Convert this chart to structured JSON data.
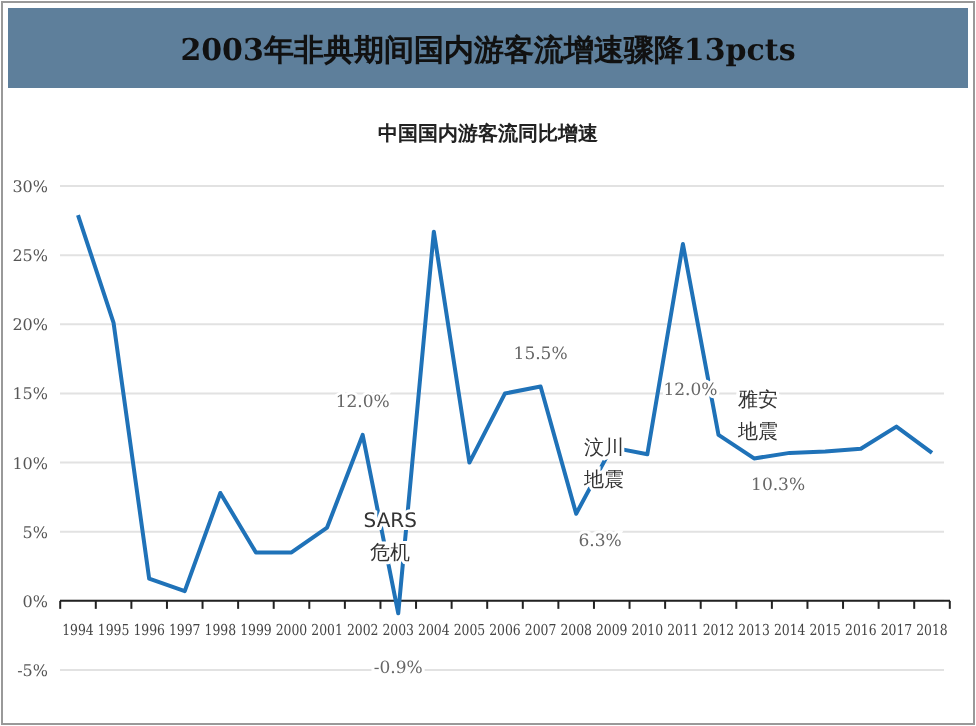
{
  "chart_data": {
    "type": "line",
    "title": "2003年非典期间国内游客流增速骤降13pcts",
    "subtitle": "中国国内游客流同比增速",
    "categories": [
      "1994",
      "1995",
      "1996",
      "1997",
      "1998",
      "1999",
      "2000",
      "2001",
      "2002",
      "2003",
      "2004",
      "2005",
      "2006",
      "2007",
      "2008",
      "2009",
      "2010",
      "2011",
      "2012",
      "2013",
      "2014",
      "2015",
      "2016",
      "2017",
      "2018"
    ],
    "values": [
      27.9,
      20.1,
      1.6,
      0.7,
      7.8,
      3.5,
      3.5,
      5.3,
      12.0,
      -0.9,
      26.7,
      10.0,
      15.0,
      15.5,
      6.3,
      11.1,
      10.6,
      25.8,
      12.0,
      10.3,
      10.7,
      10.8,
      11.0,
      12.6,
      10.7
    ],
    "color": "#1f72b8",
    "ylim": [
      -5,
      30
    ],
    "yticks": [
      {
        "value": -5,
        "label": "-5%"
      },
      {
        "value": 0,
        "label": "0%"
      },
      {
        "value": 5,
        "label": "5%"
      },
      {
        "value": 10,
        "label": "10%"
      },
      {
        "value": 15,
        "label": "15%"
      },
      {
        "value": 20,
        "label": "20%"
      },
      {
        "value": 25,
        "label": "25%"
      },
      {
        "value": 30,
        "label": "30%"
      }
    ],
    "grid": "y",
    "annotations": [
      {
        "text": "12.0%",
        "x": "2002",
        "y": 12.0
      },
      {
        "text": "SARS危机",
        "x": "2003",
        "y": -0.9
      },
      {
        "text": "-0.9%",
        "x": "2003",
        "y": -0.9
      },
      {
        "text": "15.5%",
        "x": "2007",
        "y": 15.5
      },
      {
        "text": "汶川地震",
        "x": "2008",
        "y": 6.3
      },
      {
        "text": "6.3%",
        "x": "2008",
        "y": 6.3
      },
      {
        "text": "12.0%",
        "x": "2012",
        "y": 12.0
      },
      {
        "text": "雅安地震",
        "x": "2013",
        "y": 10.3
      },
      {
        "text": "10.3%",
        "x": "2013",
        "y": 10.3
      }
    ]
  }
}
